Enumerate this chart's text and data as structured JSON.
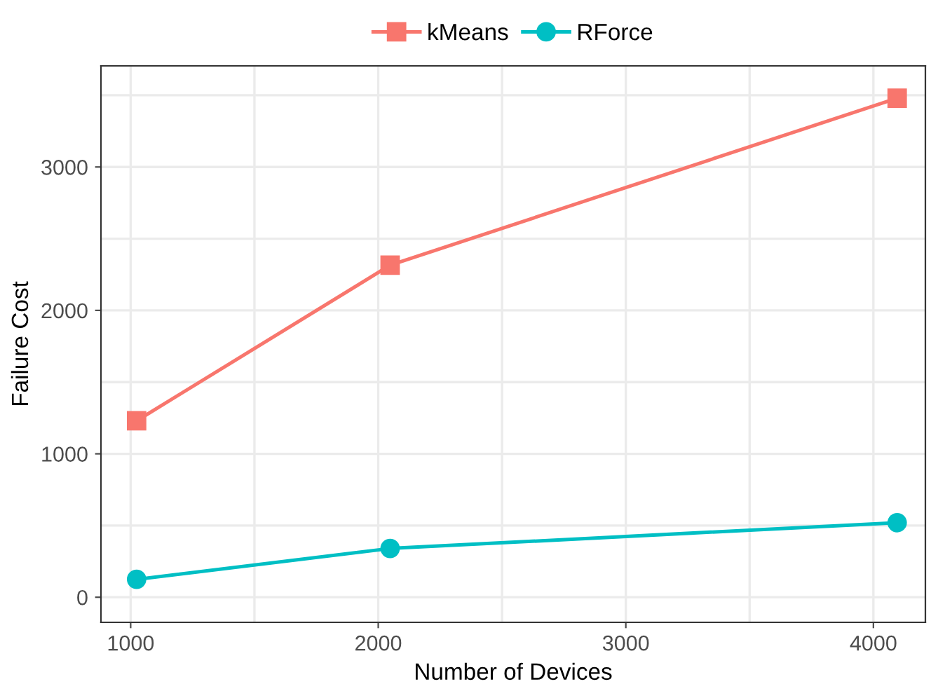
{
  "chart_data": {
    "type": "line",
    "xlabel": "Number of Devices",
    "ylabel": "Failure Cost",
    "x": [
      1024,
      2048,
      4096
    ],
    "series": [
      {
        "name": "kMeans",
        "color": "#f8766d",
        "values": [
          1230,
          2315,
          3480
        ],
        "marker": "square"
      },
      {
        "name": "RForce",
        "color": "#00bfc4",
        "values": [
          125,
          340,
          520
        ],
        "marker": "circle"
      }
    ],
    "xlim": [
      880,
      4210
    ],
    "ylim": [
      -175,
      3705
    ],
    "xticks": [
      1000,
      {
        "value": 1500,
        "label": null
      },
      2000,
      {
        "value": 2500,
        "label": null
      },
      3000,
      {
        "value": 3500,
        "label": null
      },
      4000
    ],
    "yticks": [
      0,
      {
        "value": 500,
        "label": null
      },
      1000,
      {
        "value": 1500,
        "label": null
      },
      2000,
      {
        "value": 2500,
        "label": null
      },
      3000,
      {
        "value": 3500,
        "label": null
      }
    ],
    "grid": true,
    "legend": "top",
    "line_style": "solid"
  }
}
